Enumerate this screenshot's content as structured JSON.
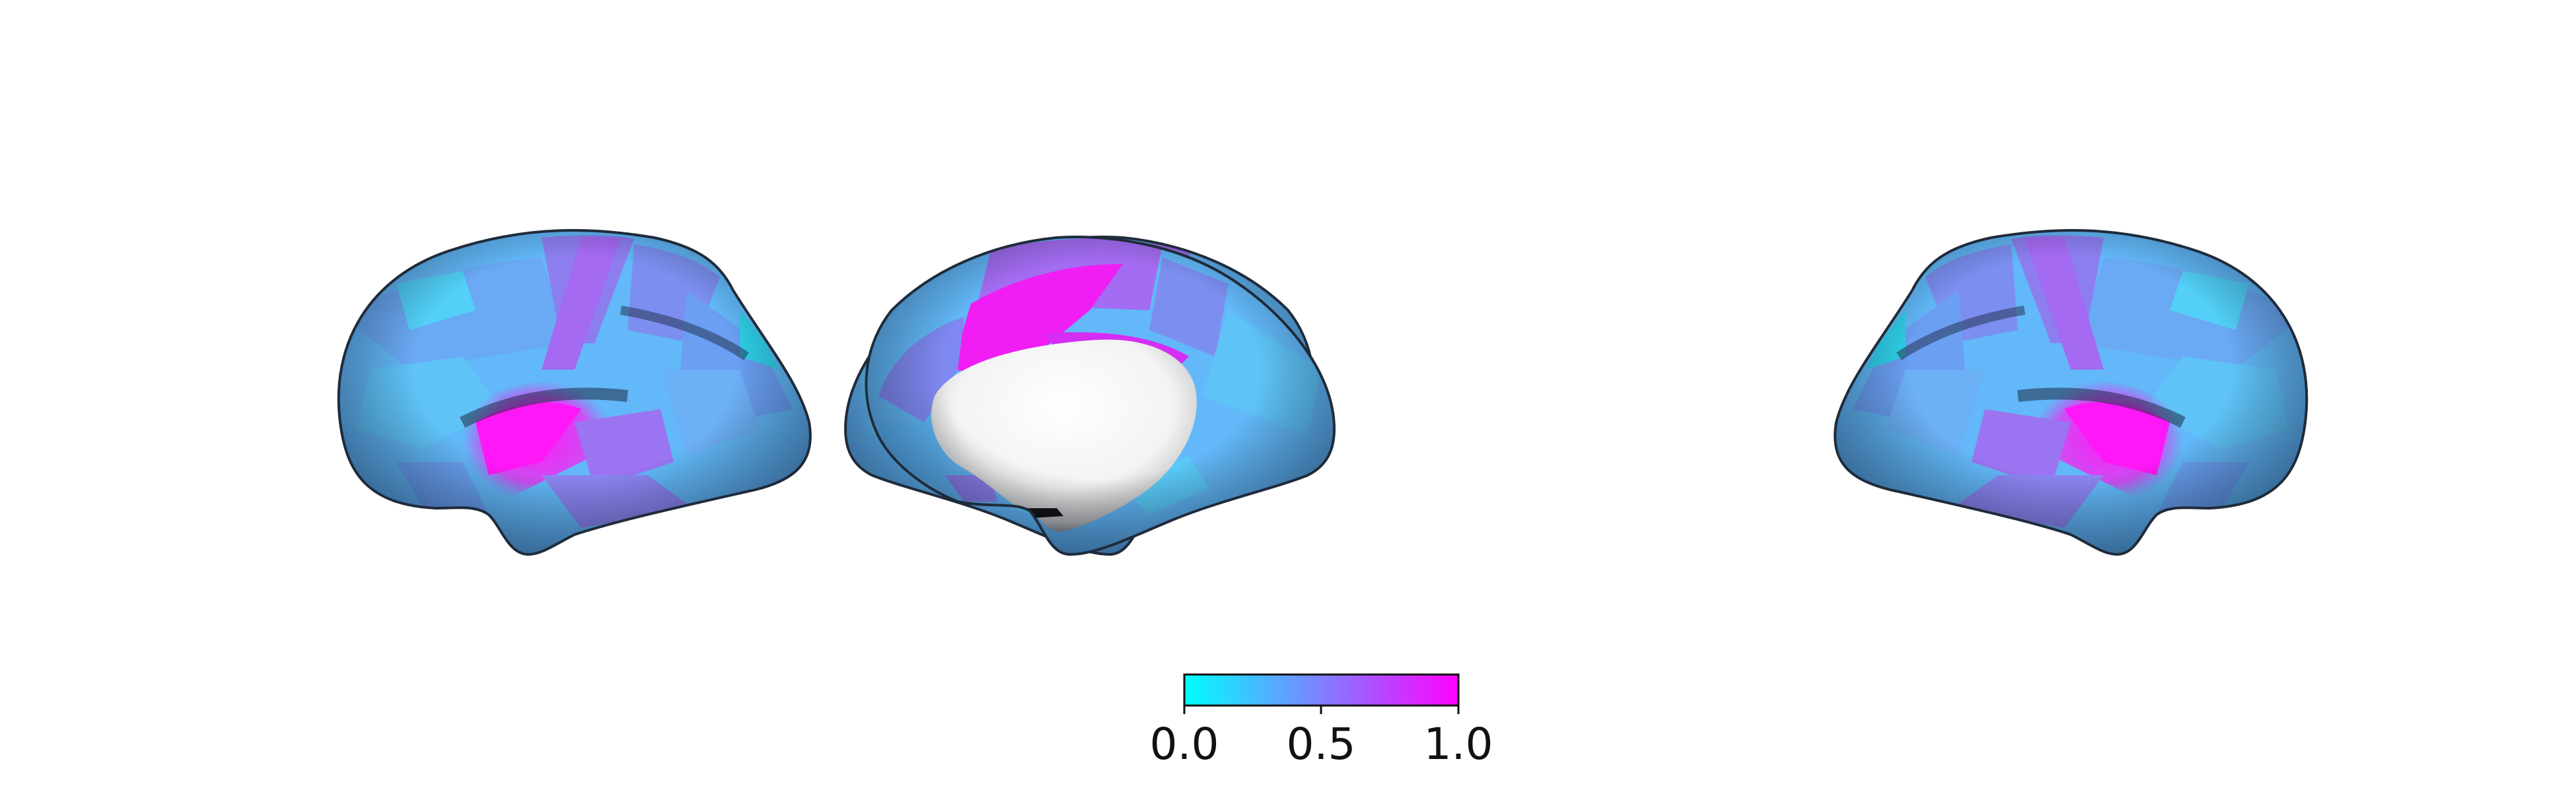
{
  "figure": {
    "views": [
      {
        "name": "left-lateral"
      },
      {
        "name": "left-medial"
      },
      {
        "name": "right-medial"
      },
      {
        "name": "right-lateral"
      }
    ],
    "colormap": {
      "name": "cool",
      "stops": [
        "#00ffff",
        "#ff00ff"
      ],
      "range": [
        0.0,
        1.0
      ]
    },
    "colorbar": {
      "ticks": [
        0.0,
        0.5,
        1.0
      ],
      "tick_labels": [
        "0.0",
        "0.5",
        "1.0"
      ]
    },
    "colors": {
      "base": "#62b8f8",
      "mid": "#7c8ff0",
      "high": "#ee29f2",
      "shadow": "#2a4a6e",
      "wall": "#ffffff"
    }
  }
}
